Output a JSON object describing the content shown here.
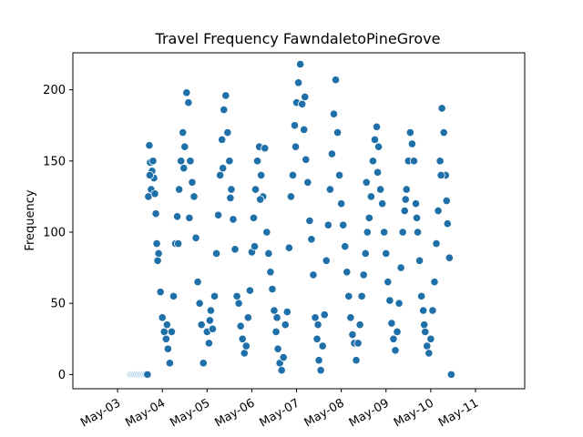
{
  "chart_data": {
    "type": "scatter",
    "title": "Travel Frequency FawndaletoPineGrove",
    "xlabel": "",
    "ylabel": "Frequency",
    "ylim": [
      -10,
      226
    ],
    "xlim": [
      "2025-05-02T00:00",
      "2025-05-12T02:24"
    ],
    "yticks": [
      0,
      50,
      100,
      150,
      200
    ],
    "xticks": [
      "2025-05-03",
      "2025-05-04",
      "2025-05-05",
      "2025-05-06",
      "2025-05-07",
      "2025-05-08",
      "2025-05-09",
      "2025-05-10",
      "2025-05-11"
    ],
    "xtick_labels": [
      "May-03",
      "May-04",
      "May-05",
      "May-06",
      "May-07",
      "May-08",
      "May-09",
      "May-10",
      "May-11"
    ],
    "grid": false,
    "colors": {
      "main": "#1f6fa8",
      "light": "#b9d7ec"
    },
    "series": [
      {
        "values_note": "",
        "points": [
          [
            "2025-05-03T07:00",
            0
          ],
          [
            "2025-05-03T08:00",
            0
          ],
          [
            "2025-05-03T09:00",
            0
          ],
          [
            "2025-05-03T10:00",
            0
          ],
          [
            "2025-05-03T11:00",
            0
          ],
          [
            "2025-05-03T12:00",
            0
          ],
          [
            "2025-05-03T13:00",
            0
          ],
          [
            "2025-05-03T14:00",
            0
          ],
          [
            "2025-05-03T15:00",
            0
          ],
          [
            "2025-05-03T16:00",
            0
          ],
          [
            "2025-05-03T16:30",
            125
          ],
          [
            "2025-05-03T17:00",
            161
          ],
          [
            "2025-05-03T17:30",
            149
          ],
          [
            "2025-05-03T18:00",
            130
          ],
          [
            "2025-05-03T18:30",
            143
          ],
          [
            "2025-05-03T19:00",
            150
          ],
          [
            "2025-05-03T19:30",
            138
          ],
          [
            "2025-05-03T20:00",
            127
          ],
          [
            "2025-05-03T20:30",
            113
          ],
          [
            "2025-05-03T21:00",
            92
          ],
          [
            "2025-05-03T22:00",
            85
          ],
          [
            "2025-05-03T23:00",
            58
          ],
          [
            "2025-05-04T00:00",
            40
          ],
          [
            "2025-05-04T01:00",
            30
          ],
          [
            "2025-05-04T02:00",
            25
          ],
          [
            "2025-05-04T03:00",
            18
          ],
          [
            "2025-05-04T04:00",
            8
          ],
          [
            "2025-05-04T05:00",
            30
          ],
          [
            "2025-05-04T06:00",
            55
          ],
          [
            "2025-05-04T07:00",
            92
          ],
          [
            "2025-05-04T08:00",
            111
          ],
          [
            "2025-05-04T09:00",
            130
          ],
          [
            "2025-05-04T10:00",
            150
          ],
          [
            "2025-05-04T11:00",
            170
          ],
          [
            "2025-05-04T12:00",
            160
          ],
          [
            "2025-05-04T13:00",
            198
          ],
          [
            "2025-05-04T14:00",
            191
          ],
          [
            "2025-05-04T15:00",
            150
          ],
          [
            "2025-05-04T16:00",
            135
          ],
          [
            "2025-05-04T17:00",
            125
          ],
          [
            "2025-05-04T18:00",
            96
          ],
          [
            "2025-05-04T19:00",
            65
          ],
          [
            "2025-05-04T20:00",
            50
          ],
          [
            "2025-05-04T21:00",
            35
          ],
          [
            "2025-05-04T22:00",
            8
          ],
          [
            "2025-05-05T00:00",
            30
          ],
          [
            "2025-05-05T01:00",
            22
          ],
          [
            "2025-05-05T02:00",
            45
          ],
          [
            "2025-05-05T03:00",
            32
          ],
          [
            "2025-05-05T04:00",
            55
          ],
          [
            "2025-05-05T05:00",
            85
          ],
          [
            "2025-05-05T06:00",
            112
          ],
          [
            "2025-05-05T07:00",
            140
          ],
          [
            "2025-05-05T08:00",
            165
          ],
          [
            "2025-05-05T09:00",
            186
          ],
          [
            "2025-05-05T10:00",
            196
          ],
          [
            "2025-05-05T11:00",
            170
          ],
          [
            "2025-05-05T12:00",
            150
          ],
          [
            "2025-05-05T13:00",
            130
          ],
          [
            "2025-05-05T14:00",
            109
          ],
          [
            "2025-05-05T15:00",
            88
          ],
          [
            "2025-05-05T16:00",
            55
          ],
          [
            "2025-05-05T17:00",
            50
          ],
          [
            "2025-05-05T18:00",
            34
          ],
          [
            "2025-05-05T19:00",
            25
          ],
          [
            "2025-05-05T20:00",
            15
          ],
          [
            "2025-05-05T21:00",
            20
          ],
          [
            "2025-05-05T22:00",
            40
          ],
          [
            "2025-05-05T23:00",
            59
          ],
          [
            "2025-05-06T00:00",
            86
          ],
          [
            "2025-05-06T01:00",
            110
          ],
          [
            "2025-05-06T02:00",
            130
          ],
          [
            "2025-05-06T03:00",
            150
          ],
          [
            "2025-05-06T04:00",
            160
          ],
          [
            "2025-05-06T05:00",
            140
          ],
          [
            "2025-05-06T06:00",
            125
          ],
          [
            "2025-05-06T07:00",
            159
          ],
          [
            "2025-05-06T08:00",
            100
          ],
          [
            "2025-05-06T09:00",
            85
          ],
          [
            "2025-05-06T10:00",
            72
          ],
          [
            "2025-05-06T11:00",
            60
          ],
          [
            "2025-05-06T12:00",
            45
          ],
          [
            "2025-05-06T13:00",
            30
          ],
          [
            "2025-05-06T14:00",
            18
          ],
          [
            "2025-05-06T15:00",
            8
          ],
          [
            "2025-05-06T16:00",
            3
          ],
          [
            "2025-05-06T17:00",
            12
          ],
          [
            "2025-05-06T18:00",
            35
          ],
          [
            "2025-05-06T19:00",
            44
          ],
          [
            "2025-05-06T20:00",
            89
          ],
          [
            "2025-05-06T21:00",
            125
          ],
          [
            "2025-05-06T22:00",
            140
          ],
          [
            "2025-05-06T23:00",
            175
          ],
          [
            "2025-05-07T00:00",
            191
          ],
          [
            "2025-05-07T01:00",
            205
          ],
          [
            "2025-05-07T02:00",
            218
          ],
          [
            "2025-05-07T03:00",
            190
          ],
          [
            "2025-05-07T04:00",
            172
          ],
          [
            "2025-05-07T05:00",
            151
          ],
          [
            "2025-05-07T06:00",
            135
          ],
          [
            "2025-05-07T07:00",
            108
          ],
          [
            "2025-05-07T08:00",
            95
          ],
          [
            "2025-05-07T09:00",
            70
          ],
          [
            "2025-05-07T10:00",
            40
          ],
          [
            "2025-05-07T11:00",
            25
          ],
          [
            "2025-05-07T12:00",
            10
          ],
          [
            "2025-05-07T13:00",
            3
          ],
          [
            "2025-05-07T14:00",
            20
          ],
          [
            "2025-05-07T15:00",
            42
          ],
          [
            "2025-05-07T16:00",
            80
          ],
          [
            "2025-05-07T17:00",
            105
          ],
          [
            "2025-05-07T18:00",
            130
          ],
          [
            "2025-05-07T19:00",
            155
          ],
          [
            "2025-05-07T20:00",
            183
          ],
          [
            "2025-05-07T21:00",
            207
          ],
          [
            "2025-05-07T22:00",
            170
          ],
          [
            "2025-05-07T23:00",
            140
          ],
          [
            "2025-05-08T00:00",
            120
          ],
          [
            "2025-05-08T01:00",
            105
          ],
          [
            "2025-05-08T02:00",
            90
          ],
          [
            "2025-05-08T03:00",
            72
          ],
          [
            "2025-05-08T04:00",
            55
          ],
          [
            "2025-05-08T05:00",
            40
          ],
          [
            "2025-05-08T06:00",
            28
          ],
          [
            "2025-05-08T07:00",
            22
          ],
          [
            "2025-05-08T08:00",
            10
          ],
          [
            "2025-05-08T09:00",
            22
          ],
          [
            "2025-05-08T10:00",
            35
          ],
          [
            "2025-05-08T11:00",
            55
          ],
          [
            "2025-05-08T12:00",
            70
          ],
          [
            "2025-05-08T13:00",
            85
          ],
          [
            "2025-05-08T14:00",
            100
          ],
          [
            "2025-05-08T15:00",
            110
          ],
          [
            "2025-05-08T16:00",
            125
          ],
          [
            "2025-05-08T17:00",
            150
          ],
          [
            "2025-05-08T18:00",
            165
          ],
          [
            "2025-05-08T19:00",
            174
          ],
          [
            "2025-05-08T20:00",
            160
          ],
          [
            "2025-05-08T21:00",
            130
          ],
          [
            "2025-05-08T22:00",
            120
          ],
          [
            "2025-05-08T23:00",
            100
          ],
          [
            "2025-05-09T00:00",
            85
          ],
          [
            "2025-05-09T01:00",
            65
          ],
          [
            "2025-05-09T02:00",
            52
          ],
          [
            "2025-05-09T03:00",
            36
          ],
          [
            "2025-05-09T04:00",
            25
          ],
          [
            "2025-05-09T05:00",
            17
          ],
          [
            "2025-05-09T06:00",
            30
          ],
          [
            "2025-05-09T07:00",
            50
          ],
          [
            "2025-05-09T08:00",
            75
          ],
          [
            "2025-05-09T09:00",
            100
          ],
          [
            "2025-05-09T10:00",
            115
          ],
          [
            "2025-05-09T11:00",
            130
          ],
          [
            "2025-05-09T12:00",
            150
          ],
          [
            "2025-05-09T13:00",
            170
          ],
          [
            "2025-05-09T14:00",
            162
          ],
          [
            "2025-05-09T15:00",
            150
          ],
          [
            "2025-05-09T16:00",
            120
          ],
          [
            "2025-05-09T17:00",
            100
          ],
          [
            "2025-05-09T18:00",
            80
          ],
          [
            "2025-05-09T19:00",
            55
          ],
          [
            "2025-05-09T20:00",
            45
          ],
          [
            "2025-05-09T21:00",
            30
          ],
          [
            "2025-05-09T22:00",
            20
          ],
          [
            "2025-05-09T23:00",
            15
          ],
          [
            "2025-05-10T00:00",
            25
          ],
          [
            "2025-05-10T01:00",
            45
          ],
          [
            "2025-05-10T02:00",
            65
          ],
          [
            "2025-05-10T03:00",
            92
          ],
          [
            "2025-05-10T04:00",
            115
          ],
          [
            "2025-05-10T05:00",
            150
          ],
          [
            "2025-05-10T06:00",
            187
          ],
          [
            "2025-05-10T07:00",
            170
          ],
          [
            "2025-05-10T08:00",
            140
          ],
          [
            "2025-05-10T09:00",
            106
          ],
          [
            "2025-05-10T10:00",
            82
          ],
          [
            "2025-05-10T11:00",
            0
          ],
          [
            "2025-05-03T17:15",
            140
          ],
          [
            "2025-05-03T21:30",
            80
          ],
          [
            "2025-05-04T02:30",
            35
          ],
          [
            "2025-05-04T08:30",
            92
          ],
          [
            "2025-05-04T11:30",
            145
          ],
          [
            "2025-05-04T14:30",
            110
          ],
          [
            "2025-05-05T01:30",
            38
          ],
          [
            "2025-05-05T08:30",
            145
          ],
          [
            "2025-05-05T12:30",
            124
          ],
          [
            "2025-05-06T01:30",
            90
          ],
          [
            "2025-05-06T04:30",
            123
          ],
          [
            "2025-05-06T13:30",
            40
          ],
          [
            "2025-05-06T23:30",
            160
          ],
          [
            "2025-05-07T04:30",
            195
          ],
          [
            "2025-05-07T11:30",
            35
          ],
          [
            "2025-05-08T13:30",
            135
          ],
          [
            "2025-05-08T19:30",
            142
          ],
          [
            "2025-05-09T10:30",
            123
          ],
          [
            "2025-05-09T16:30",
            110
          ],
          [
            "2025-05-09T20:30",
            35
          ],
          [
            "2025-05-10T05:30",
            140
          ],
          [
            "2025-05-10T08:30",
            122
          ]
        ]
      }
    ]
  }
}
